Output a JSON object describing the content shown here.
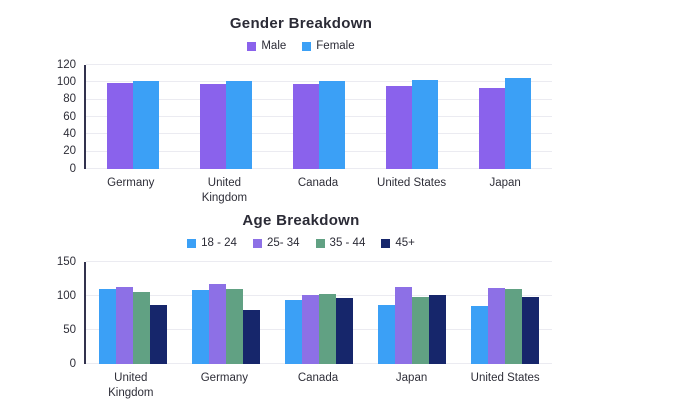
{
  "page": {
    "background": "#ffffff"
  },
  "chart_data": [
    {
      "type": "bar",
      "title": "Gender Breakdown",
      "categories": [
        "Germany",
        "United Kingdom",
        "Canada",
        "United States",
        "Japan"
      ],
      "xlabels": [
        "Germany",
        "United\nKingdom",
        "Canada",
        "United States",
        "Japan"
      ],
      "series": [
        {
          "name": "Male",
          "color": "#8a62ec",
          "values": [
            99,
            98,
            98,
            96,
            94
          ]
        },
        {
          "name": "Female",
          "color": "#3ba0f6",
          "values": [
            101,
            101,
            101,
            103,
            105
          ]
        }
      ],
      "ylim": [
        0,
        120
      ],
      "yticks": [
        0,
        20,
        40,
        60,
        80,
        100,
        120
      ],
      "legend_position": "top",
      "grid": true
    },
    {
      "type": "bar",
      "title": "Age Breakdown",
      "categories": [
        "United Kingdom",
        "Germany",
        "Canada",
        "Japan",
        "United States"
      ],
      "xlabels": [
        "United\nKingdom",
        "Germany",
        "Canada",
        "Japan",
        "United States"
      ],
      "series": [
        {
          "name": "18 - 24",
          "color": "#3ba0f6",
          "values": [
            110,
            109,
            94,
            87,
            85
          ]
        },
        {
          "name": "25- 34",
          "color": "#8d70e6",
          "values": [
            113,
            117,
            102,
            113,
            112
          ]
        },
        {
          "name": "35 - 44",
          "color": "#61a183",
          "values": [
            106,
            110,
            103,
            98,
            110
          ]
        },
        {
          "name": "45+",
          "color": "#16266b",
          "values": [
            87,
            80,
            97,
            101,
            99
          ]
        }
      ],
      "ylim": [
        0,
        150
      ],
      "yticks": [
        0,
        50,
        100,
        150
      ],
      "legend_position": "top",
      "grid": true
    }
  ]
}
